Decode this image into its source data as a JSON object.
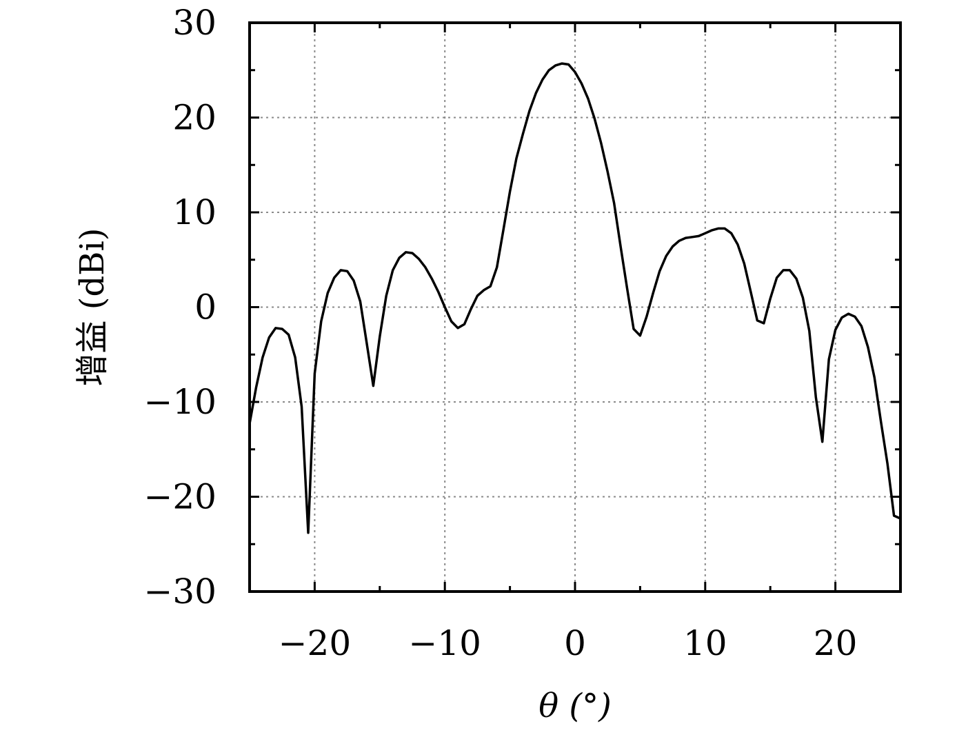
{
  "chart_data": {
    "type": "line",
    "xlabel": "θ (°)",
    "ylabel": "增益 (dBi)",
    "xlim": [
      -25,
      25
    ],
    "ylim": [
      -30,
      30
    ],
    "xticks": [
      -20,
      -10,
      0,
      10,
      20
    ],
    "yticks": [
      -30,
      -20,
      -10,
      0,
      10,
      20,
      30
    ],
    "xtick_labels": [
      "−20",
      "−10",
      "0",
      "10",
      "20"
    ],
    "ytick_labels": [
      "−30",
      "−20",
      "−10",
      "0",
      "10",
      "20",
      "30"
    ],
    "grid": true,
    "series": [
      {
        "x": [
          -25,
          -24.5,
          -24,
          -23.5,
          -23,
          -22.5,
          -22,
          -21.5,
          -21,
          -20.5,
          -20,
          -19.5,
          -19,
          -18.5,
          -18,
          -17.5,
          -17,
          -16.5,
          -16,
          -15.5,
          -15,
          -14.5,
          -14,
          -13.5,
          -13,
          -12.5,
          -12,
          -11.5,
          -11,
          -10.5,
          -10,
          -9.5,
          -9,
          -8.5,
          -8,
          -7.5,
          -7,
          -6.5,
          -6,
          -5.5,
          -5,
          -4.5,
          -4,
          -3.5,
          -3,
          -2.5,
          -2,
          -1.5,
          -1,
          -0.5,
          0,
          0.5,
          1,
          1.5,
          2,
          2.5,
          3,
          3.5,
          4,
          4.5,
          5,
          5.5,
          6,
          6.5,
          7,
          7.5,
          8,
          8.5,
          9,
          9.5,
          10,
          10.5,
          11,
          11.5,
          12,
          12.5,
          13,
          13.5,
          14,
          14.5,
          15,
          15.5,
          16,
          16.5,
          17,
          17.5,
          18,
          18.5,
          19,
          19.5,
          20,
          20.5,
          21,
          21.5,
          22,
          22.5,
          23,
          23.5,
          24,
          24.5,
          25
        ],
        "values": [
          -12.3,
          -8.5,
          -5.3,
          -3.2,
          -2.2,
          -2.3,
          -2.9,
          -5.3,
          -10.5,
          -23.8,
          -7,
          -1.5,
          1.5,
          3.1,
          3.9,
          3.8,
          2.8,
          0.6,
          -3.8,
          -8.3,
          -3.1,
          1.2,
          3.9,
          5.2,
          5.8,
          5.7,
          5.1,
          4.2,
          3,
          1.6,
          0,
          -1.5,
          -2.2,
          -1.8,
          -0.2,
          1.2,
          1.8,
          2.2,
          4.2,
          8.2,
          12.2,
          15.7,
          18.3,
          20.7,
          22.6,
          24,
          25,
          25.5,
          25.7,
          25.6,
          24.8,
          23.6,
          22,
          19.9,
          17.3,
          14.3,
          11,
          6.4,
          2,
          -2.3,
          -3,
          -1,
          1.5,
          3.8,
          5.4,
          6.4,
          7,
          7.3,
          7.4,
          7.5,
          7.8,
          8.1,
          8.3,
          8.3,
          7.8,
          6.6,
          4.6,
          1.6,
          -1.4,
          -1.7,
          0.9,
          3.1,
          3.9,
          3.9,
          3,
          1,
          -2.5,
          -9.5,
          -14.2,
          -5.5,
          -2.4,
          -1.1,
          -0.7,
          -1.0,
          -2,
          -4.2,
          -7.4,
          -12.1,
          -16.5,
          -22,
          -22.3
        ]
      }
    ]
  }
}
